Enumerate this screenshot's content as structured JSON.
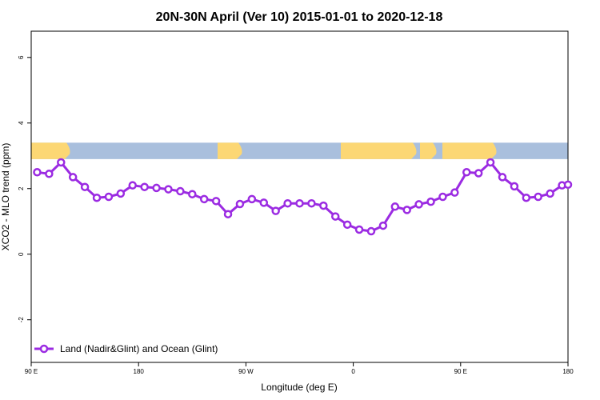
{
  "chart_data": {
    "type": "line",
    "title": "20N-30N April (Ver 10)   2015-01-01 to 2020-12-18",
    "xlabel": "Longitude (deg E)",
    "ylabel": "XCO2 - MLO trend (ppm)",
    "xlim": [
      90,
      540
    ],
    "ylim": [
      -3.3,
      6.8
    ],
    "x_ticks": [
      {
        "value": 90,
        "label": "90 E"
      },
      {
        "value": 180,
        "label": "180"
      },
      {
        "value": 270,
        "label": "90 W"
      },
      {
        "value": 360,
        "label": "0"
      },
      {
        "value": 450,
        "label": "90 E"
      },
      {
        "value": 540,
        "label": "180"
      }
    ],
    "y_ticks": [
      {
        "value": -2,
        "label": "-2"
      },
      {
        "value": 0,
        "label": "0"
      },
      {
        "value": 2,
        "label": "2"
      },
      {
        "value": 4,
        "label": "4"
      },
      {
        "value": 6,
        "label": "6"
      }
    ],
    "map_strip": {
      "y_min": 2.9,
      "y_max": 3.4,
      "ocean_color": "#a9bfdd",
      "land_color": "#fcd774"
    },
    "series": [
      {
        "name": "Land (Nadir&Glint) and Ocean (Glint)",
        "color": "#9b2be2",
        "x": [
          95,
          105,
          115,
          125,
          135,
          145,
          155,
          165,
          175,
          185,
          195,
          205,
          215,
          225,
          235,
          245,
          255,
          265,
          275,
          285,
          295,
          305,
          315,
          325,
          335,
          345,
          355,
          365,
          375,
          385,
          395,
          405,
          415,
          425,
          435,
          445,
          455,
          465,
          475,
          485,
          495,
          505,
          515,
          525,
          535,
          540
        ],
        "y": [
          2.5,
          2.45,
          2.8,
          2.35,
          2.05,
          1.72,
          1.75,
          1.85,
          2.1,
          2.05,
          2.02,
          1.98,
          1.92,
          1.83,
          1.68,
          1.62,
          1.22,
          1.53,
          1.68,
          1.57,
          1.32,
          1.55,
          1.55,
          1.55,
          1.48,
          1.15,
          0.9,
          0.75,
          0.7,
          0.87,
          1.45,
          1.35,
          1.52,
          1.6,
          1.75,
          1.88,
          2.5,
          2.47,
          2.8,
          2.35,
          2.07,
          1.72,
          1.75,
          1.85,
          2.1,
          2.12
        ]
      }
    ],
    "legend": {
      "position": "bottom-left",
      "entries": [
        "Land (Nadir&Glint) and Ocean (Glint)"
      ]
    }
  }
}
